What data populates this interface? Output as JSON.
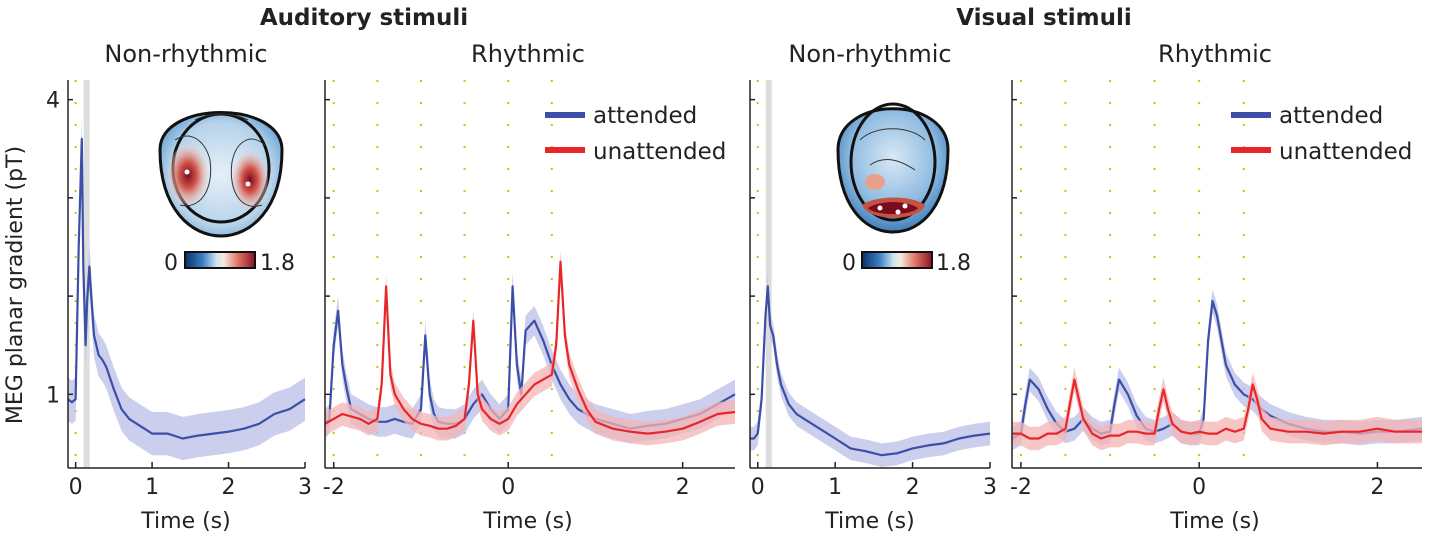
{
  "figure": {
    "group_titles": [
      "Auditory stimuli",
      "Visual stimuli"
    ],
    "ylabel": "MEG planar gradient (pT)",
    "y_tick_labels": [
      "4",
      "1"
    ]
  },
  "colors": {
    "attended": "#3b4fa8",
    "attended_band": "#b9bde6",
    "unattended": "#e8262a",
    "unattended_band": "#f4b4b5",
    "stimulus_marker": "#b5cc16",
    "onset_shade": "#dddddd"
  },
  "legend": {
    "attended": "attended",
    "unattended": "unattended"
  },
  "topomap_colorbar": {
    "min_label": "0",
    "max_label": "1.8"
  },
  "chart_data": [
    {
      "type": "line",
      "group": "Auditory stimuli",
      "title": "Non-rhythmic",
      "xlabel": "Time (s)",
      "ylabel": "MEG planar gradient (pT)",
      "xlim": [
        -0.1,
        3.0
      ],
      "ylim": [
        0.25,
        4.2
      ],
      "x_ticks": [
        0,
        1,
        2,
        3
      ],
      "y_ticks": [
        1,
        4
      ],
      "stimulus_markers": [
        0
      ],
      "series": [
        {
          "name": "attended",
          "band": 0.22,
          "x": [
            -0.1,
            -0.05,
            0.0,
            0.04,
            0.08,
            0.1,
            0.13,
            0.15,
            0.18,
            0.2,
            0.24,
            0.3,
            0.35,
            0.4,
            0.5,
            0.6,
            0.7,
            0.8,
            1.0,
            1.2,
            1.4,
            1.6,
            1.8,
            2.0,
            2.2,
            2.4,
            2.6,
            2.8,
            3.0
          ],
          "y": [
            0.95,
            0.92,
            0.95,
            2.5,
            3.6,
            2.3,
            1.5,
            1.95,
            2.3,
            2.05,
            1.6,
            1.4,
            1.35,
            1.28,
            1.05,
            0.85,
            0.75,
            0.7,
            0.6,
            0.6,
            0.55,
            0.58,
            0.6,
            0.62,
            0.65,
            0.7,
            0.8,
            0.85,
            0.95
          ]
        }
      ]
    },
    {
      "type": "line",
      "group": "Auditory stimuli",
      "title": "Rhythmic",
      "xlabel": "Time (s)",
      "xlim": [
        -2.1,
        2.6
      ],
      "ylim": [
        0.25,
        4.2
      ],
      "x_ticks": [
        -2,
        0,
        2
      ],
      "stimulus_markers": [
        -2.0,
        -1.5,
        -1.0,
        -0.5,
        0.0,
        0.5
      ],
      "legend_position": "top-right",
      "series": [
        {
          "name": "attended",
          "band": 0.15,
          "x": [
            -2.1,
            -2.05,
            -2.0,
            -1.95,
            -1.9,
            -1.85,
            -1.8,
            -1.7,
            -1.6,
            -1.5,
            -1.4,
            -1.3,
            -1.2,
            -1.1,
            -1.0,
            -0.95,
            -0.9,
            -0.85,
            -0.8,
            -0.7,
            -0.6,
            -0.5,
            -0.4,
            -0.3,
            -0.2,
            -0.1,
            0.0,
            0.05,
            0.1,
            0.15,
            0.2,
            0.3,
            0.4,
            0.5,
            0.6,
            0.7,
            0.8,
            1.0,
            1.2,
            1.4,
            1.6,
            1.8,
            2.0,
            2.2,
            2.4,
            2.6
          ],
          "y": [
            0.7,
            0.75,
            1.5,
            1.85,
            1.3,
            1.05,
            0.85,
            0.8,
            0.75,
            0.72,
            0.72,
            0.75,
            0.72,
            0.7,
            0.85,
            1.6,
            1.0,
            0.8,
            0.72,
            0.7,
            0.7,
            0.75,
            0.9,
            1.0,
            0.85,
            0.75,
            0.85,
            2.1,
            1.3,
            1.0,
            1.65,
            1.75,
            1.55,
            1.3,
            1.1,
            0.95,
            0.85,
            0.75,
            0.7,
            0.65,
            0.68,
            0.7,
            0.75,
            0.8,
            0.9,
            1.0
          ]
        },
        {
          "name": "unattended",
          "band": 0.12,
          "x": [
            -2.1,
            -1.9,
            -1.7,
            -1.6,
            -1.5,
            -1.45,
            -1.4,
            -1.35,
            -1.3,
            -1.2,
            -1.1,
            -1.0,
            -0.9,
            -0.8,
            -0.7,
            -0.6,
            -0.5,
            -0.45,
            -0.4,
            -0.35,
            -0.3,
            -0.2,
            -0.1,
            0.0,
            0.1,
            0.2,
            0.3,
            0.4,
            0.5,
            0.55,
            0.6,
            0.65,
            0.7,
            0.8,
            0.9,
            1.0,
            1.2,
            1.4,
            1.6,
            1.8,
            2.0,
            2.2,
            2.4,
            2.6
          ],
          "y": [
            0.7,
            0.8,
            0.75,
            0.7,
            0.75,
            1.1,
            2.1,
            1.2,
            1.0,
            0.85,
            0.75,
            0.7,
            0.68,
            0.65,
            0.65,
            0.68,
            0.75,
            1.1,
            1.75,
            1.0,
            0.85,
            0.75,
            0.7,
            0.75,
            0.9,
            1.0,
            1.1,
            1.15,
            1.2,
            1.5,
            2.35,
            1.6,
            1.3,
            1.05,
            0.85,
            0.72,
            0.65,
            0.62,
            0.6,
            0.62,
            0.65,
            0.72,
            0.8,
            0.82
          ]
        }
      ]
    },
    {
      "type": "line",
      "group": "Visual stimuli",
      "title": "Non-rhythmic",
      "xlabel": "Time (s)",
      "xlim": [
        -0.1,
        3.0
      ],
      "ylim": [
        0.25,
        4.2
      ],
      "x_ticks": [
        0,
        1,
        2,
        3
      ],
      "stimulus_markers": [
        0
      ],
      "series": [
        {
          "name": "attended",
          "band": 0.12,
          "x": [
            -0.1,
            -0.05,
            0.0,
            0.05,
            0.1,
            0.13,
            0.16,
            0.2,
            0.25,
            0.3,
            0.4,
            0.5,
            0.6,
            0.8,
            1.0,
            1.2,
            1.4,
            1.6,
            1.8,
            2.0,
            2.2,
            2.4,
            2.6,
            2.8,
            3.0
          ],
          "y": [
            0.55,
            0.55,
            0.6,
            0.95,
            1.8,
            2.1,
            1.7,
            1.6,
            1.3,
            1.1,
            0.9,
            0.8,
            0.75,
            0.65,
            0.55,
            0.45,
            0.42,
            0.38,
            0.4,
            0.45,
            0.48,
            0.5,
            0.55,
            0.58,
            0.6
          ]
        }
      ]
    },
    {
      "type": "line",
      "group": "Visual stimuli",
      "title": "Rhythmic",
      "xlabel": "Time (s)",
      "xlim": [
        -2.1,
        2.5
      ],
      "ylim": [
        0.25,
        4.2
      ],
      "x_ticks": [
        -2,
        0,
        2
      ],
      "stimulus_markers": [
        -2.0,
        -1.5,
        -1.0,
        -0.5,
        0.0,
        0.5
      ],
      "legend_position": "top-right",
      "series": [
        {
          "name": "attended",
          "band": 0.12,
          "x": [
            -2.1,
            -2.0,
            -1.95,
            -1.9,
            -1.8,
            -1.7,
            -1.6,
            -1.5,
            -1.4,
            -1.3,
            -1.2,
            -1.1,
            -1.0,
            -0.95,
            -0.9,
            -0.8,
            -0.7,
            -0.6,
            -0.5,
            -0.4,
            -0.3,
            -0.2,
            -0.1,
            0.0,
            0.05,
            0.1,
            0.15,
            0.2,
            0.3,
            0.4,
            0.5,
            0.6,
            0.7,
            0.8,
            1.0,
            1.2,
            1.4,
            1.6,
            1.8,
            2.0,
            2.2,
            2.5
          ],
          "y": [
            0.55,
            0.6,
            0.9,
            1.15,
            1.05,
            0.85,
            0.7,
            0.62,
            0.65,
            0.75,
            0.65,
            0.6,
            0.62,
            0.9,
            1.15,
            1.0,
            0.78,
            0.65,
            0.62,
            0.65,
            0.7,
            0.62,
            0.6,
            0.6,
            0.75,
            1.55,
            1.95,
            1.8,
            1.3,
            1.1,
            1.0,
            0.95,
            0.85,
            0.78,
            0.7,
            0.65,
            0.62,
            0.62,
            0.6,
            0.62,
            0.62,
            0.65
          ]
        },
        {
          "name": "unattended",
          "band": 0.12,
          "x": [
            -2.1,
            -2.0,
            -1.9,
            -1.8,
            -1.7,
            -1.6,
            -1.5,
            -1.45,
            -1.4,
            -1.35,
            -1.3,
            -1.2,
            -1.1,
            -1.0,
            -0.9,
            -0.8,
            -0.7,
            -0.6,
            -0.5,
            -0.45,
            -0.4,
            -0.35,
            -0.3,
            -0.2,
            -0.1,
            0.0,
            0.1,
            0.2,
            0.3,
            0.4,
            0.5,
            0.55,
            0.6,
            0.65,
            0.7,
            0.8,
            1.0,
            1.2,
            1.4,
            1.6,
            1.8,
            2.0,
            2.2,
            2.5
          ],
          "y": [
            0.6,
            0.6,
            0.55,
            0.55,
            0.6,
            0.6,
            0.65,
            0.9,
            1.15,
            0.95,
            0.75,
            0.6,
            0.55,
            0.58,
            0.58,
            0.62,
            0.62,
            0.6,
            0.6,
            0.85,
            1.05,
            0.85,
            0.7,
            0.62,
            0.6,
            0.62,
            0.6,
            0.6,
            0.65,
            0.62,
            0.65,
            0.85,
            1.1,
            0.95,
            0.75,
            0.65,
            0.62,
            0.62,
            0.6,
            0.62,
            0.62,
            0.65,
            0.62,
            0.62
          ]
        }
      ]
    }
  ]
}
